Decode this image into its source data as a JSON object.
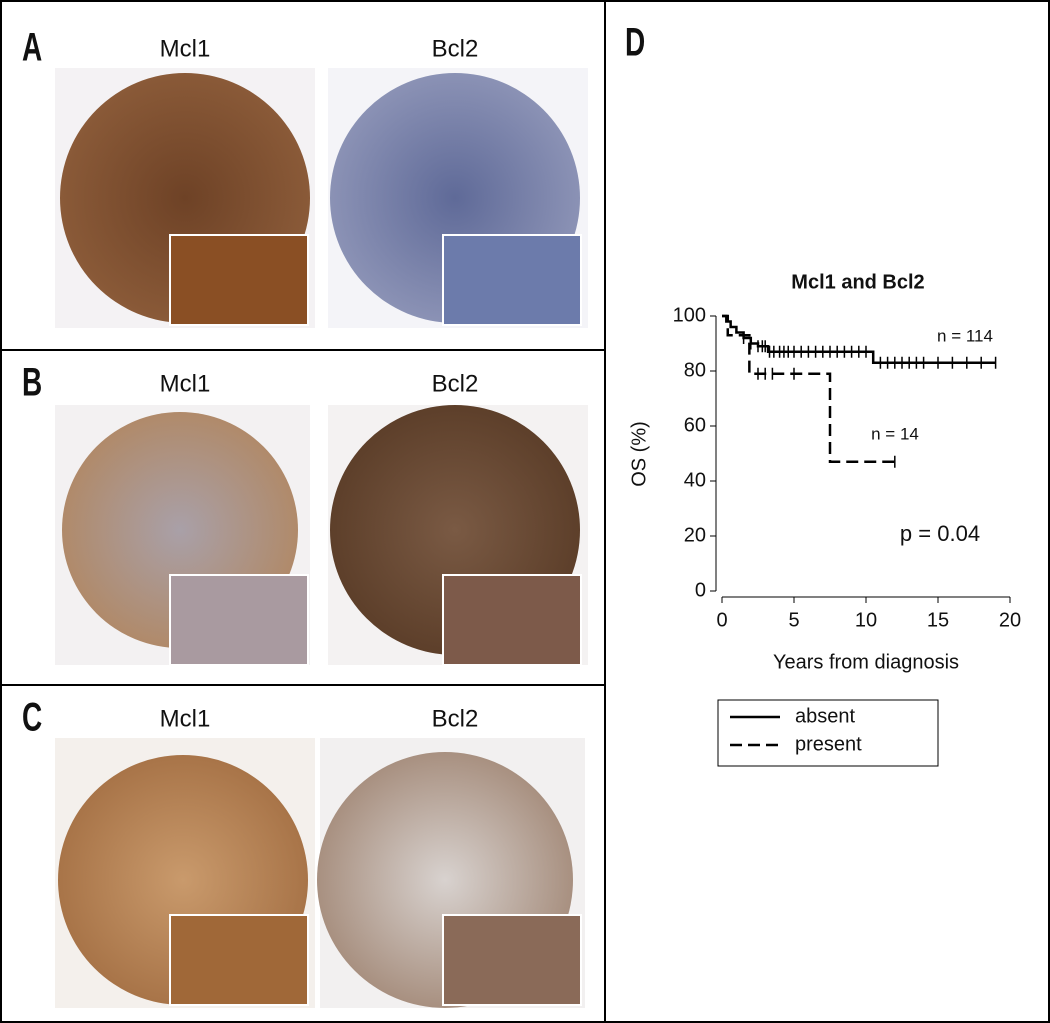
{
  "panels": [
    {
      "label": "A",
      "titles": [
        "Mcl1",
        "Bcl2"
      ]
    },
    {
      "label": "B",
      "titles": [
        "Mcl1",
        "Bcl2"
      ]
    },
    {
      "label": "C",
      "titles": [
        "Mcl1",
        "Bcl2"
      ]
    }
  ],
  "chart_panel_label": "D",
  "chart_data": {
    "type": "line",
    "step": true,
    "title": "Mcl1 and Bcl2",
    "x_label": "Years from diagnosis",
    "y_label": "OS (%)",
    "xlim": [
      0,
      20
    ],
    "ylim": [
      0,
      100
    ],
    "xticks": [
      0,
      5,
      10,
      15,
      20
    ],
    "yticks": [
      0,
      20,
      40,
      60,
      80,
      100
    ],
    "series": [
      {
        "name": "absent",
        "color": "#000000",
        "dash": "solid",
        "x": [
          0,
          0.3,
          0.6,
          1,
          1.5,
          2,
          2.5,
          3.2,
          10.5,
          19
        ],
        "values": [
          100,
          98,
          96,
          94,
          92,
          90,
          89,
          87,
          83,
          83
        ],
        "censored_x": [
          1.5,
          2,
          2.5,
          2.8,
          3,
          3.3,
          3.6,
          4,
          4.3,
          4.6,
          5,
          5.5,
          6,
          6.5,
          7,
          7.5,
          8,
          8.5,
          9,
          9.5,
          10,
          11,
          11.5,
          12,
          12.5,
          13,
          13.5,
          14,
          15,
          16,
          17,
          18,
          19
        ]
      },
      {
        "name": "present",
        "color": "#000000",
        "dash": "dashed",
        "x": [
          0,
          0.4,
          1.9,
          7.5,
          12
        ],
        "values": [
          100,
          93,
          79,
          47,
          47
        ],
        "censored_x": [
          2.5,
          3,
          3.5,
          5,
          12
        ]
      }
    ],
    "annotations": [
      "n = 114",
      "n = 14",
      "p = 0.04"
    ]
  }
}
